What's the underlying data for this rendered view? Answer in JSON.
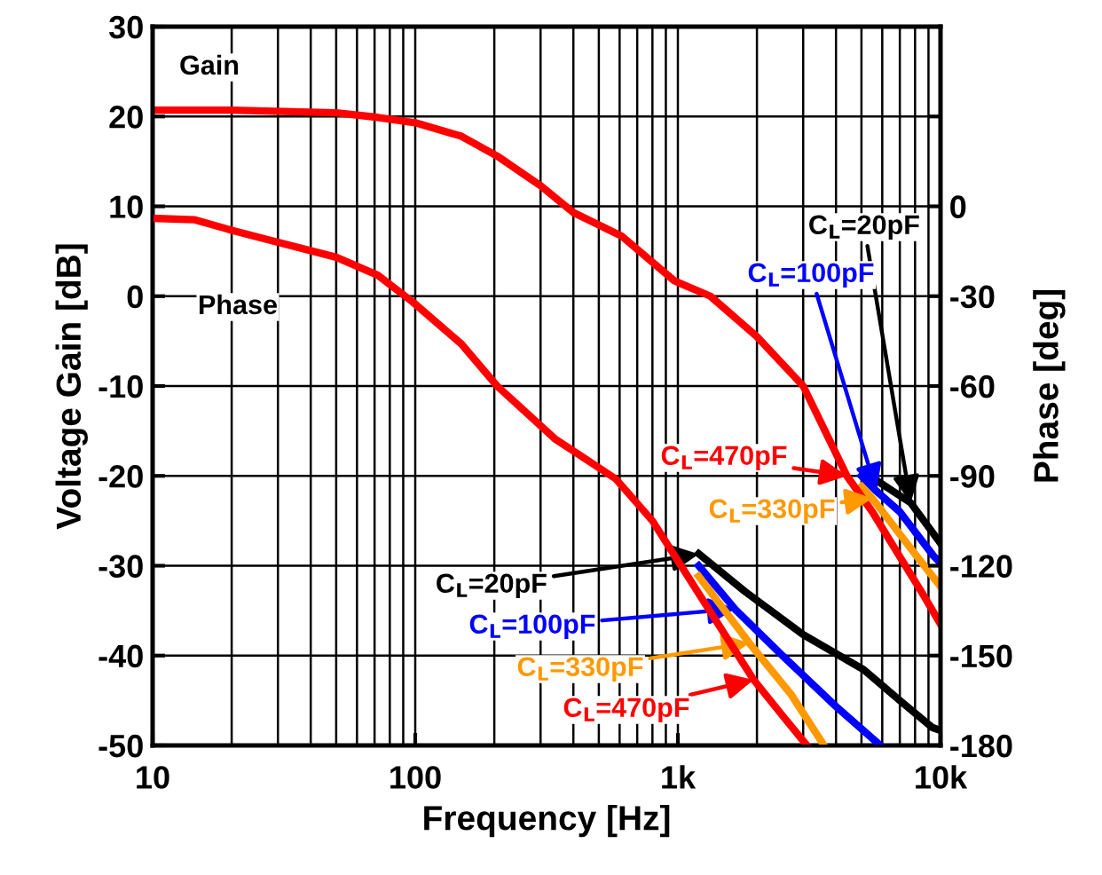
{
  "chart_data": {
    "type": "line",
    "xlabel": "Frequency [Hz]",
    "ylabel": "Voltage Gain [dB]",
    "y2label": "Phase [deg]",
    "log": "x",
    "xlim": [
      10,
      10000
    ],
    "xticks": [
      10,
      100,
      {
        "value": 1000,
        "label": "1k"
      },
      {
        "value": 10000,
        "label": "10k"
      }
    ],
    "ylim": [
      -50,
      30
    ],
    "yticks": [
      -50,
      -40,
      -30,
      -20,
      -10,
      0,
      10,
      20,
      30
    ],
    "y2lim": [
      -180,
      60
    ],
    "y2ticks": [
      {
        "value": 60,
        "label": null
      },
      {
        "value": 30,
        "label": null
      },
      0,
      -30,
      -60,
      -90,
      -120,
      -150,
      -180
    ],
    "grid": true,
    "legend": false,
    "line_style": "solid",
    "marker": "none",
    "series": [
      {
        "color": "#000000",
        "x": [
          5700,
          7700,
          10000
        ],
        "values": [
          -20.5,
          -23,
          -27.5
        ]
      },
      {
        "color": "#0000ff",
        "x": [
          5000,
          5700,
          7000,
          9400,
          10000
        ],
        "values": [
          -20,
          -21.7,
          -24,
          -28.9,
          -29.7
        ]
      },
      {
        "color": "#ff9900",
        "x": [
          5000,
          5500,
          7000,
          8100,
          10000
        ],
        "values": [
          -21.2,
          -22.5,
          -26.5,
          -28.9,
          -32.3
        ]
      },
      {
        "color": "#ff0000",
        "x": [
          10,
          20,
          50,
          72,
          100,
          150,
          205,
          300,
          400,
          610,
          970,
          1330,
          2000,
          3000,
          4400,
          5500,
          7000,
          8500,
          10000
        ],
        "values": [
          20.7,
          20.7,
          20.4,
          19.9,
          19.3,
          17.8,
          15.6,
          12.3,
          9.3,
          6.7,
          1.7,
          0,
          -4.5,
          -10,
          -20,
          -24,
          -29,
          -33,
          -36.5
        ]
      },
      {
        "color": "#000000",
        "axis": "y2",
        "x": [
          1200,
          1800,
          3000,
          5100,
          7000,
          9300,
          10000
        ],
        "values": [
          -116,
          -128.6,
          -143,
          -154.7,
          -165,
          -174,
          -175
        ]
      },
      {
        "color": "#0000ff",
        "axis": "y2",
        "x": [
          1200,
          1650,
          2500,
          4000,
          5900
        ],
        "values": [
          -120,
          -134.5,
          -150,
          -167,
          -180
        ]
      },
      {
        "color": "#ff9900",
        "axis": "y2",
        "x": [
          1200,
          1870,
          2700,
          3600
        ],
        "values": [
          -123.5,
          -145.8,
          -163,
          -180
        ]
      },
      {
        "color": "#ff0000",
        "axis": "y2",
        "x": [
          10,
          14.5,
          20,
          30,
          50,
          72,
          98,
          150,
          205,
          340,
          580,
          800,
          1940,
          2500,
          3100
        ],
        "values": [
          -4,
          -4.5,
          -8,
          -12,
          -17,
          -23,
          -32,
          -46,
          -60,
          -77.6,
          -91,
          -105,
          -158,
          -170,
          -180
        ]
      }
    ],
    "annotations": [
      {
        "text": "C$_{L}$=20pF",
        "x": 7700,
        "y": -23
      },
      {
        "text": "C$_{L}$=100pF",
        "x": 5700,
        "y": -21.7
      },
      {
        "text": "C$_{L}$=330pF",
        "x": 5500,
        "y": -22.5
      },
      {
        "text": "C$_{L}$=470pF",
        "x": 4400,
        "y": -20
      },
      {
        "text": "C$_{L}$=20pF",
        "x": 1200,
        "y": -28.7
      },
      {
        "text": "C$_{L}$=100pF",
        "x": 1650,
        "y": -34.8
      },
      {
        "text": "C$_{L}$=330pF",
        "x": 1870,
        "y": -38.6
      },
      {
        "text": "C$_{L}$=470pF",
        "x": 1940,
        "y": -42.7
      },
      "Gain",
      "Phase"
    ]
  }
}
